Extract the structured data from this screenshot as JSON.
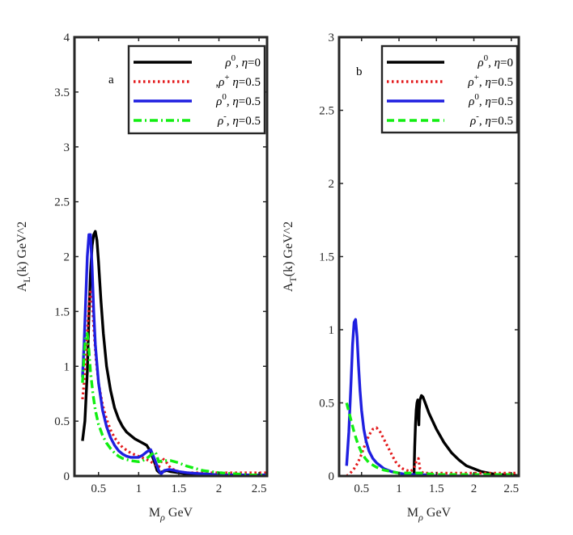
{
  "chart_data": [
    {
      "type": "line",
      "panel": "a",
      "xlabel_main": "M",
      "xlabel_sub": "ρ",
      "xlabel_rest": " GeV",
      "ylabel_main": "A",
      "ylabel_sub": "L",
      "ylabel_rest": "(k) GeV^2",
      "xlim": [
        0.2,
        2.6
      ],
      "ylim": [
        0,
        4
      ],
      "xticks": [
        0.5,
        1,
        1.5,
        2,
        2.5
      ],
      "xtick_labels": [
        "0.5",
        "1",
        "1.5",
        "2",
        "2.5"
      ],
      "yticks": [
        0,
        0.5,
        1,
        1.5,
        2,
        2.5,
        3,
        3.5,
        4
      ],
      "ytick_labels": [
        "0",
        "0.5",
        "1",
        "1.5",
        "2",
        "2.5",
        "3",
        "3.5",
        "4"
      ],
      "legend_position": "top-right",
      "series": [
        {
          "name": "ρ0, η=0",
          "legend": {
            "pre": "",
            "sym": "ρ",
            "sup": "0",
            "post": ", η=0"
          },
          "color": "#000000",
          "dash": "solid",
          "x": [
            0.3,
            0.33,
            0.36,
            0.38,
            0.4,
            0.42,
            0.44,
            0.46,
            0.48,
            0.5,
            0.53,
            0.56,
            0.6,
            0.65,
            0.7,
            0.75,
            0.8,
            0.85,
            0.9,
            0.95,
            1.0,
            1.05,
            1.1,
            1.15,
            1.2,
            1.23,
            1.26,
            1.3,
            1.35,
            1.4,
            1.5,
            1.6,
            1.8,
            2.0,
            2.2,
            2.4,
            2.6
          ],
          "y": [
            0.32,
            0.5,
            0.95,
            1.45,
            1.85,
            2.1,
            2.2,
            2.23,
            2.15,
            1.95,
            1.6,
            1.3,
            1.0,
            0.78,
            0.62,
            0.52,
            0.45,
            0.4,
            0.37,
            0.34,
            0.32,
            0.3,
            0.28,
            0.22,
            0.12,
            0.05,
            0.03,
            0.04,
            0.05,
            0.04,
            0.03,
            0.02,
            0.02,
            0.01,
            0.01,
            0.01,
            0.01
          ]
        },
        {
          "name": ",ρ+ η=0.5",
          "legend": {
            "pre": ",",
            "sym": "ρ",
            "sup": "+",
            "post": " η=0.5"
          },
          "color": "#e31a1c",
          "dash": "dot",
          "x": [
            0.3,
            0.32,
            0.34,
            0.36,
            0.38,
            0.4,
            0.42,
            0.44,
            0.47,
            0.5,
            0.55,
            0.6,
            0.65,
            0.7,
            0.75,
            0.8,
            0.9,
            1.0,
            1.1,
            1.15,
            1.2,
            1.25,
            1.3,
            1.35,
            1.4,
            1.5,
            1.6,
            1.8,
            2.0,
            2.2,
            2.4,
            2.6
          ],
          "y": [
            0.7,
            0.85,
            1.05,
            1.3,
            1.55,
            1.7,
            1.6,
            1.35,
            1.05,
            0.85,
            0.65,
            0.52,
            0.42,
            0.35,
            0.3,
            0.26,
            0.21,
            0.18,
            0.15,
            0.13,
            0.11,
            0.08,
            0.16,
            0.12,
            0.07,
            0.04,
            0.03,
            0.03,
            0.03,
            0.03,
            0.03,
            0.03
          ]
        },
        {
          "name": "ρ0, η=0.5",
          "legend": {
            "pre": "",
            "sym": "ρ",
            "sup": "0",
            "post": ", η=0.5"
          },
          "color": "#1f1fe0",
          "dash": "solid",
          "x": [
            0.3,
            0.32,
            0.34,
            0.36,
            0.38,
            0.4,
            0.42,
            0.44,
            0.46,
            0.5,
            0.55,
            0.6,
            0.65,
            0.7,
            0.75,
            0.8,
            0.85,
            0.9,
            1.0,
            1.05,
            1.1,
            1.15,
            1.2,
            1.25,
            1.28,
            1.32,
            1.38,
            1.45,
            1.5,
            1.6,
            1.8,
            2.0,
            2.2,
            2.4,
            2.6
          ],
          "y": [
            0.9,
            1.2,
            1.6,
            2.0,
            2.2,
            2.2,
            1.9,
            1.5,
            1.2,
            0.85,
            0.6,
            0.45,
            0.35,
            0.28,
            0.23,
            0.2,
            0.18,
            0.17,
            0.17,
            0.19,
            0.22,
            0.24,
            0.15,
            0.05,
            0.02,
            0.05,
            0.06,
            0.05,
            0.04,
            0.03,
            0.02,
            0.01,
            0.01,
            0.01,
            0.01
          ]
        },
        {
          "name": "ρ-, η=0.5",
          "legend": {
            "pre": "",
            "sym": "ρ",
            "sup": "-",
            "post": ", η=0.5"
          },
          "color": "#11ee11",
          "dash": "dashdot",
          "x": [
            0.3,
            0.32,
            0.34,
            0.36,
            0.38,
            0.4,
            0.43,
            0.46,
            0.5,
            0.55,
            0.6,
            0.65,
            0.7,
            0.75,
            0.8,
            0.9,
            1.0,
            1.05,
            1.1,
            1.15,
            1.2,
            1.22,
            1.25,
            1.3,
            1.4,
            1.5,
            1.6,
            1.8,
            2.0,
            2.2,
            2.4,
            2.6
          ],
          "y": [
            0.85,
            1.1,
            1.28,
            1.3,
            1.15,
            0.95,
            0.75,
            0.6,
            0.47,
            0.37,
            0.3,
            0.25,
            0.21,
            0.18,
            0.16,
            0.14,
            0.13,
            0.14,
            0.16,
            0.19,
            0.22,
            0.2,
            0.13,
            0.14,
            0.14,
            0.12,
            0.09,
            0.05,
            0.03,
            0.02,
            0.01,
            0.01
          ]
        }
      ]
    },
    {
      "type": "line",
      "panel": "b",
      "xlabel_main": "M",
      "xlabel_sub": "ρ",
      "xlabel_rest": " GeV",
      "ylabel_main": "A",
      "ylabel_sub": "T",
      "ylabel_rest": "(k) GeV^2",
      "xlim": [
        0.2,
        2.6
      ],
      "ylim": [
        0,
        3
      ],
      "xticks": [
        0.5,
        1,
        1.5,
        2,
        2.5
      ],
      "xtick_labels": [
        "0.5",
        "1",
        "1.5",
        "2",
        "2.5"
      ],
      "yticks": [
        0,
        0.5,
        1,
        1.5,
        2,
        2.5,
        3
      ],
      "ytick_labels": [
        "0",
        "0.5",
        "1",
        "1.5",
        "2",
        "2.5",
        "3"
      ],
      "legend_position": "top-right",
      "series": [
        {
          "name": "ρ0, η=0",
          "legend": {
            "pre": "",
            "sym": "ρ",
            "sup": "0",
            "post": ", η=0"
          },
          "color": "#000000",
          "dash": "solid",
          "x": [
            1.2,
            1.21,
            1.22,
            1.23,
            1.24,
            1.25,
            1.255,
            1.26,
            1.265,
            1.27,
            1.28,
            1.3,
            1.32,
            1.35,
            1.4,
            1.5,
            1.6,
            1.7,
            1.8,
            1.9,
            2.0,
            2.1,
            2.2,
            2.3,
            2.4,
            2.5,
            2.6
          ],
          "y": [
            0.0,
            0.2,
            0.35,
            0.45,
            0.5,
            0.52,
            0.5,
            0.4,
            0.35,
            0.45,
            0.52,
            0.55,
            0.54,
            0.5,
            0.43,
            0.32,
            0.23,
            0.16,
            0.11,
            0.07,
            0.05,
            0.03,
            0.02,
            0.01,
            0.01,
            0.01,
            0.0
          ]
        },
        {
          "name": "ρ+, η=0.5",
          "legend": {
            "pre": "",
            "sym": "ρ",
            "sup": "+",
            "post": ", η=0.5"
          },
          "color": "#e31a1c",
          "dash": "dot",
          "x": [
            0.3,
            0.35,
            0.4,
            0.45,
            0.5,
            0.55,
            0.6,
            0.65,
            0.7,
            0.75,
            0.8,
            0.85,
            0.9,
            0.95,
            1.0,
            1.05,
            1.1,
            1.15,
            1.2,
            1.23,
            1.26,
            1.28,
            1.32,
            1.4,
            1.5,
            1.7,
            2.0,
            2.2,
            2.4,
            2.6
          ],
          "y": [
            0.0,
            0.02,
            0.05,
            0.09,
            0.15,
            0.22,
            0.28,
            0.32,
            0.33,
            0.3,
            0.25,
            0.2,
            0.15,
            0.1,
            0.07,
            0.05,
            0.04,
            0.03,
            0.05,
            0.1,
            0.12,
            0.05,
            0.02,
            0.02,
            0.02,
            0.02,
            0.02,
            0.02,
            0.02,
            0.02
          ]
        },
        {
          "name": "ρ0, η=0.5",
          "legend": {
            "pre": "",
            "sym": "ρ",
            "sup": "0",
            "post": ", η=0.5"
          },
          "color": "#1f1fe0",
          "dash": "solid",
          "x": [
            0.3,
            0.33,
            0.36,
            0.38,
            0.4,
            0.42,
            0.44,
            0.46,
            0.48,
            0.5,
            0.53,
            0.56,
            0.6,
            0.65,
            0.7,
            0.75,
            0.8,
            0.85,
            0.9,
            1.0,
            1.1,
            1.2,
            1.3,
            1.5,
            2.0
          ],
          "y": [
            0.07,
            0.3,
            0.65,
            0.9,
            1.05,
            1.07,
            0.95,
            0.75,
            0.58,
            0.45,
            0.32,
            0.24,
            0.17,
            0.12,
            0.09,
            0.07,
            0.05,
            0.04,
            0.03,
            0.02,
            0.01,
            0.01,
            0.01,
            0.0,
            0.0
          ]
        },
        {
          "name": "ρ-, η=0.5",
          "legend": {
            "pre": "",
            "sym": "ρ",
            "sup": "-",
            "post": ", η=0.5"
          },
          "color": "#11ee11",
          "dash": "dash",
          "x": [
            0.3,
            0.35,
            0.4,
            0.45,
            0.5,
            0.55,
            0.6,
            0.7,
            0.8,
            0.9,
            1.0,
            1.1,
            1.2,
            1.3,
            1.5,
            1.8,
            2.0,
            2.3,
            2.6
          ],
          "y": [
            0.5,
            0.4,
            0.3,
            0.22,
            0.16,
            0.12,
            0.09,
            0.06,
            0.04,
            0.03,
            0.02,
            0.02,
            0.02,
            0.02,
            0.01,
            0.01,
            0.01,
            0.01,
            0.01
          ]
        }
      ]
    }
  ]
}
